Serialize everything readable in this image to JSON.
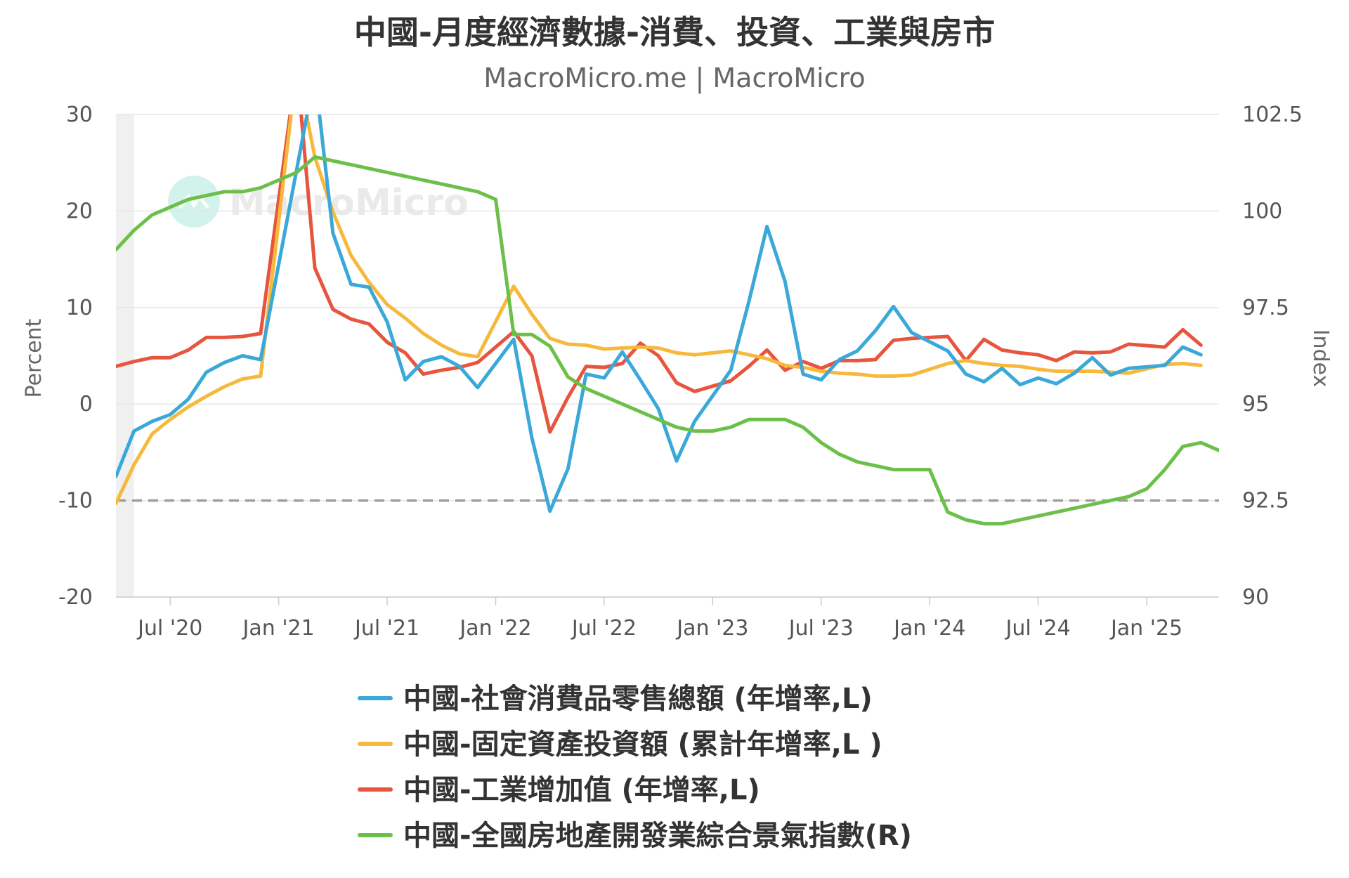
{
  "chart_data": {
    "type": "line",
    "title": "中國-月度經濟數據-消費、投資、工業與房市",
    "subtitle": "MacroMicro.me | MacroMicro",
    "watermark": "MacroMicro",
    "left_axis": {
      "label": "Percent",
      "range": [
        -20,
        30
      ],
      "ticks": [
        "30",
        "20",
        "10",
        "0",
        "-10",
        "-20"
      ]
    },
    "right_axis": {
      "label": "Index",
      "range": [
        90,
        102.5
      ],
      "ticks": [
        "102.5",
        "100",
        "97.5",
        "95",
        "92.5",
        "90"
      ]
    },
    "x_ticks": [
      "Jul '20",
      "Jan '21",
      "Jul '21",
      "Jan '22",
      "Jul '22",
      "Jan '23",
      "Jul '23",
      "Jan '24",
      "Jul '24",
      "Jan '25"
    ],
    "reference_line": {
      "axis": "left",
      "value": -10,
      "style": "dashed"
    },
    "shaded_region": {
      "from": "2020-04",
      "to": "2020-05"
    },
    "grid": true,
    "legend_position": "bottom",
    "series": [
      {
        "name": "中國-社會消費品零售總額 (年增率,L)",
        "axis": "left",
        "color": "#3aa8d8",
        "points": [
          [
            "2020-04",
            -7.5
          ],
          [
            "2020-05",
            -2.8
          ],
          [
            "2020-06",
            -1.8
          ],
          [
            "2020-07",
            -1.1
          ],
          [
            "2020-08",
            0.5
          ],
          [
            "2020-09",
            3.3
          ],
          [
            "2020-10",
            4.3
          ],
          [
            "2020-11",
            5.0
          ],
          [
            "2020-12",
            4.6
          ],
          [
            "2021-03",
            34.2
          ],
          [
            "2021-04",
            17.7
          ],
          [
            "2021-05",
            12.4
          ],
          [
            "2021-06",
            12.1
          ],
          [
            "2021-07",
            8.5
          ],
          [
            "2021-08",
            2.5
          ],
          [
            "2021-09",
            4.4
          ],
          [
            "2021-10",
            4.9
          ],
          [
            "2021-11",
            3.9
          ],
          [
            "2021-12",
            1.7
          ],
          [
            "2022-02",
            6.7
          ],
          [
            "2022-03",
            -3.5
          ],
          [
            "2022-04",
            -11.1
          ],
          [
            "2022-05",
            -6.7
          ],
          [
            "2022-06",
            3.1
          ],
          [
            "2022-07",
            2.7
          ],
          [
            "2022-08",
            5.4
          ],
          [
            "2022-09",
            2.5
          ],
          [
            "2022-10",
            -0.5
          ],
          [
            "2022-11",
            -5.9
          ],
          [
            "2022-12",
            -1.8
          ],
          [
            "2023-02",
            3.5
          ],
          [
            "2023-03",
            10.6
          ],
          [
            "2023-04",
            18.4
          ],
          [
            "2023-05",
            12.7
          ],
          [
            "2023-06",
            3.1
          ],
          [
            "2023-07",
            2.5
          ],
          [
            "2023-08",
            4.6
          ],
          [
            "2023-09",
            5.5
          ],
          [
            "2023-10",
            7.6
          ],
          [
            "2023-11",
            10.1
          ],
          [
            "2023-12",
            7.4
          ],
          [
            "2024-02",
            5.5
          ],
          [
            "2024-03",
            3.1
          ],
          [
            "2024-04",
            2.3
          ],
          [
            "2024-05",
            3.7
          ],
          [
            "2024-06",
            2.0
          ],
          [
            "2024-07",
            2.7
          ],
          [
            "2024-08",
            2.1
          ],
          [
            "2024-09",
            3.2
          ],
          [
            "2024-10",
            4.8
          ],
          [
            "2024-11",
            3.0
          ],
          [
            "2024-12",
            3.7
          ],
          [
            "2025-02",
            4.0
          ],
          [
            "2025-03",
            5.9
          ],
          [
            "2025-04",
            5.1
          ]
        ]
      },
      {
        "name": "中國-固定資產投資額 (累計年增率,L )",
        "axis": "left",
        "color": "#f6b93b",
        "points": [
          [
            "2020-04",
            -10.3
          ],
          [
            "2020-05",
            -6.3
          ],
          [
            "2020-06",
            -3.1
          ],
          [
            "2020-07",
            -1.6
          ],
          [
            "2020-08",
            -0.3
          ],
          [
            "2020-09",
            0.8
          ],
          [
            "2020-10",
            1.8
          ],
          [
            "2020-11",
            2.6
          ],
          [
            "2020-12",
            2.9
          ],
          [
            "2021-02",
            35.0
          ],
          [
            "2021-03",
            25.6
          ],
          [
            "2021-04",
            19.9
          ],
          [
            "2021-05",
            15.4
          ],
          [
            "2021-06",
            12.6
          ],
          [
            "2021-07",
            10.3
          ],
          [
            "2021-08",
            8.9
          ],
          [
            "2021-09",
            7.3
          ],
          [
            "2021-10",
            6.1
          ],
          [
            "2021-11",
            5.2
          ],
          [
            "2021-12",
            4.9
          ],
          [
            "2022-02",
            12.2
          ],
          [
            "2022-03",
            9.3
          ],
          [
            "2022-04",
            6.8
          ],
          [
            "2022-05",
            6.2
          ],
          [
            "2022-06",
            6.1
          ],
          [
            "2022-07",
            5.7
          ],
          [
            "2022-08",
            5.8
          ],
          [
            "2022-09",
            5.9
          ],
          [
            "2022-10",
            5.8
          ],
          [
            "2022-11",
            5.3
          ],
          [
            "2022-12",
            5.1
          ],
          [
            "2023-02",
            5.5
          ],
          [
            "2023-03",
            5.1
          ],
          [
            "2023-04",
            4.7
          ],
          [
            "2023-05",
            4.0
          ],
          [
            "2023-06",
            3.8
          ],
          [
            "2023-07",
            3.4
          ],
          [
            "2023-08",
            3.2
          ],
          [
            "2023-09",
            3.1
          ],
          [
            "2023-10",
            2.9
          ],
          [
            "2023-11",
            2.9
          ],
          [
            "2023-12",
            3.0
          ],
          [
            "2024-02",
            4.2
          ],
          [
            "2024-03",
            4.5
          ],
          [
            "2024-04",
            4.2
          ],
          [
            "2024-05",
            4.0
          ],
          [
            "2024-06",
            3.9
          ],
          [
            "2024-07",
            3.6
          ],
          [
            "2024-08",
            3.4
          ],
          [
            "2024-09",
            3.4
          ],
          [
            "2024-10",
            3.4
          ],
          [
            "2024-11",
            3.3
          ],
          [
            "2024-12",
            3.2
          ],
          [
            "2025-02",
            4.1
          ],
          [
            "2025-03",
            4.2
          ],
          [
            "2025-04",
            4.0
          ]
        ]
      },
      {
        "name": "中國-工業增加值 (年增率,L)",
        "axis": "left",
        "color": "#e8553e",
        "points": [
          [
            "2020-04",
            3.9
          ],
          [
            "2020-05",
            4.4
          ],
          [
            "2020-06",
            4.8
          ],
          [
            "2020-07",
            4.8
          ],
          [
            "2020-08",
            5.6
          ],
          [
            "2020-09",
            6.9
          ],
          [
            "2020-10",
            6.9
          ],
          [
            "2020-11",
            7.0
          ],
          [
            "2020-12",
            7.3
          ],
          [
            "2021-02",
            35.1
          ],
          [
            "2021-03",
            14.1
          ],
          [
            "2021-04",
            9.8
          ],
          [
            "2021-05",
            8.8
          ],
          [
            "2021-06",
            8.3
          ],
          [
            "2021-07",
            6.4
          ],
          [
            "2021-08",
            5.3
          ],
          [
            "2021-09",
            3.1
          ],
          [
            "2021-10",
            3.5
          ],
          [
            "2021-11",
            3.8
          ],
          [
            "2021-12",
            4.3
          ],
          [
            "2022-02",
            7.5
          ],
          [
            "2022-03",
            5.0
          ],
          [
            "2022-04",
            -2.9
          ],
          [
            "2022-05",
            0.7
          ],
          [
            "2022-06",
            3.9
          ],
          [
            "2022-07",
            3.8
          ],
          [
            "2022-08",
            4.2
          ],
          [
            "2022-09",
            6.3
          ],
          [
            "2022-10",
            5.0
          ],
          [
            "2022-11",
            2.2
          ],
          [
            "2022-12",
            1.3
          ],
          [
            "2023-02",
            2.4
          ],
          [
            "2023-03",
            3.9
          ],
          [
            "2023-04",
            5.6
          ],
          [
            "2023-05",
            3.5
          ],
          [
            "2023-06",
            4.4
          ],
          [
            "2023-07",
            3.7
          ],
          [
            "2023-08",
            4.5
          ],
          [
            "2023-09",
            4.5
          ],
          [
            "2023-10",
            4.6
          ],
          [
            "2023-11",
            6.6
          ],
          [
            "2023-12",
            6.8
          ],
          [
            "2024-02",
            7.0
          ],
          [
            "2024-03",
            4.5
          ],
          [
            "2024-04",
            6.7
          ],
          [
            "2024-05",
            5.6
          ],
          [
            "2024-06",
            5.3
          ],
          [
            "2024-07",
            5.1
          ],
          [
            "2024-08",
            4.5
          ],
          [
            "2024-09",
            5.4
          ],
          [
            "2024-10",
            5.3
          ],
          [
            "2024-11",
            5.4
          ],
          [
            "2024-12",
            6.2
          ],
          [
            "2025-02",
            5.9
          ],
          [
            "2025-03",
            7.7
          ],
          [
            "2025-04",
            6.1
          ]
        ]
      },
      {
        "name": "中國-全國房地產開發業綜合景氣指數(R)",
        "axis": "right",
        "color": "#6cc04a",
        "points": [
          [
            "2020-04",
            99.0
          ],
          [
            "2020-05",
            99.5
          ],
          [
            "2020-06",
            99.9
          ],
          [
            "2020-07",
            100.1
          ],
          [
            "2020-08",
            100.3
          ],
          [
            "2020-09",
            100.4
          ],
          [
            "2020-10",
            100.5
          ],
          [
            "2020-11",
            100.5
          ],
          [
            "2020-12",
            100.6
          ],
          [
            "2021-01",
            100.8
          ],
          [
            "2021-02",
            101.0
          ],
          [
            "2021-03",
            101.4
          ],
          [
            "2021-04",
            101.3
          ],
          [
            "2021-05",
            101.2
          ],
          [
            "2021-06",
            101.1
          ],
          [
            "2021-07",
            101.0
          ],
          [
            "2021-08",
            100.9
          ],
          [
            "2021-09",
            100.8
          ],
          [
            "2021-10",
            100.7
          ],
          [
            "2021-11",
            100.6
          ],
          [
            "2021-12",
            100.5
          ],
          [
            "2022-01",
            100.3
          ],
          [
            "2022-02",
            96.8
          ],
          [
            "2022-03",
            96.8
          ],
          [
            "2022-04",
            96.5
          ],
          [
            "2022-05",
            95.7
          ],
          [
            "2022-06",
            95.4
          ],
          [
            "2022-07",
            95.2
          ],
          [
            "2022-08",
            95.0
          ],
          [
            "2022-09",
            94.8
          ],
          [
            "2022-10",
            94.6
          ],
          [
            "2022-11",
            94.4
          ],
          [
            "2022-12",
            94.3
          ],
          [
            "2023-01",
            94.3
          ],
          [
            "2023-02",
            94.4
          ],
          [
            "2023-03",
            94.6
          ],
          [
            "2023-04",
            94.6
          ],
          [
            "2023-05",
            94.6
          ],
          [
            "2023-06",
            94.4
          ],
          [
            "2023-07",
            94.0
          ],
          [
            "2023-08",
            93.7
          ],
          [
            "2023-09",
            93.5
          ],
          [
            "2023-10",
            93.4
          ],
          [
            "2023-11",
            93.3
          ],
          [
            "2023-12",
            93.3
          ],
          [
            "2024-01",
            93.3
          ],
          [
            "2024-02",
            92.2
          ],
          [
            "2024-03",
            92.0
          ],
          [
            "2024-04",
            91.9
          ],
          [
            "2024-05",
            91.9
          ],
          [
            "2024-06",
            92.0
          ],
          [
            "2024-07",
            92.1
          ],
          [
            "2024-08",
            92.2
          ],
          [
            "2024-09",
            92.3
          ],
          [
            "2024-10",
            92.4
          ],
          [
            "2024-11",
            92.5
          ],
          [
            "2024-12",
            92.6
          ],
          [
            "2025-01",
            92.8
          ],
          [
            "2025-02",
            93.3
          ],
          [
            "2025-03",
            93.9
          ],
          [
            "2025-04",
            94.0
          ],
          [
            "2025-05",
            93.8
          ]
        ]
      }
    ]
  }
}
